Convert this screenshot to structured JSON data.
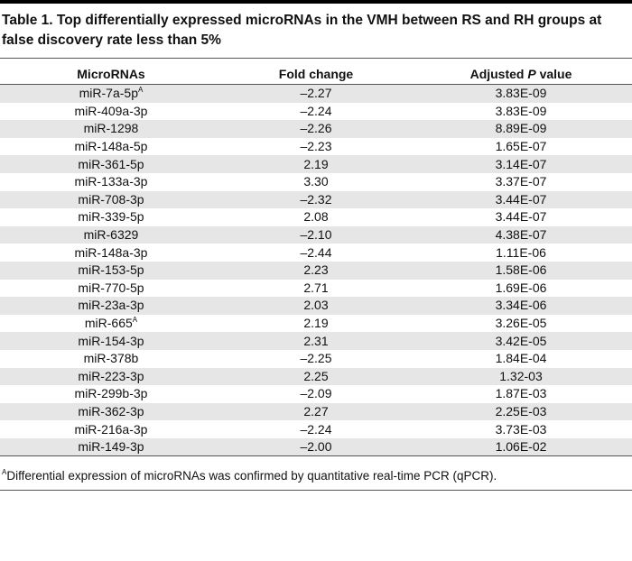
{
  "title": "Table 1. Top differentially expressed microRNAs in the VMH between RS and RH groups at false discovery rate less than 5%",
  "header": {
    "mirna": "MicroRNAs",
    "fold": "Fold change",
    "p_pre": "Adjusted",
    "p_italic": "P",
    "p_post": "value"
  },
  "rows": [
    {
      "mirna": "miR-7a-5p",
      "note": "A",
      "fold": "–2.27",
      "p": "3.83E-09"
    },
    {
      "mirna": "miR-409a-3p",
      "fold": "–2.24",
      "p": "3.83E-09"
    },
    {
      "mirna": "miR-1298",
      "fold": "–2.26",
      "p": "8.89E-09"
    },
    {
      "mirna": "miR-148a-5p",
      "fold": "–2.23",
      "p": "1.65E-07"
    },
    {
      "mirna": "miR-361-5p",
      "fold": "2.19",
      "p": "3.14E-07"
    },
    {
      "mirna": "miR-133a-3p",
      "fold": "3.30",
      "p": "3.37E-07"
    },
    {
      "mirna": "miR-708-3p",
      "fold": "–2.32",
      "p": "3.44E-07"
    },
    {
      "mirna": "miR-339-5p",
      "fold": "2.08",
      "p": "3.44E-07"
    },
    {
      "mirna": "miR-6329",
      "fold": "–2.10",
      "p": "4.38E-07"
    },
    {
      "mirna": "miR-148a-3p",
      "fold": "–2.44",
      "p": "1.11E-06"
    },
    {
      "mirna": "miR-153-5p",
      "fold": "2.23",
      "p": "1.58E-06"
    },
    {
      "mirna": "miR-770-5p",
      "fold": "2.71",
      "p": "1.69E-06"
    },
    {
      "mirna": "miR-23a-3p",
      "fold": "2.03",
      "p": "3.34E-06"
    },
    {
      "mirna": "miR-665",
      "note": "A",
      "fold": "2.19",
      "p": "3.26E-05"
    },
    {
      "mirna": "miR-154-3p",
      "fold": "2.31",
      "p": "3.42E-05"
    },
    {
      "mirna": "miR-378b",
      "fold": "–2.25",
      "p": "1.84E-04"
    },
    {
      "mirna": "miR-223-3p",
      "fold": "2.25",
      "p": "1.32-03"
    },
    {
      "mirna": "miR-299b-3p",
      "fold": "–2.09",
      "p": "1.87E-03"
    },
    {
      "mirna": "miR-362-3p",
      "fold": "2.27",
      "p": "2.25E-03"
    },
    {
      "mirna": "miR-216a-3p",
      "fold": "–2.24",
      "p": "3.73E-03"
    },
    {
      "mirna": "miR-149-3p",
      "fold": "–2.00",
      "p": "1.06E-02"
    }
  ],
  "footnote": {
    "mark": "A",
    "text": "Differential expression of microRNAs was confirmed by quantitative real-time PCR (qPCR)."
  }
}
